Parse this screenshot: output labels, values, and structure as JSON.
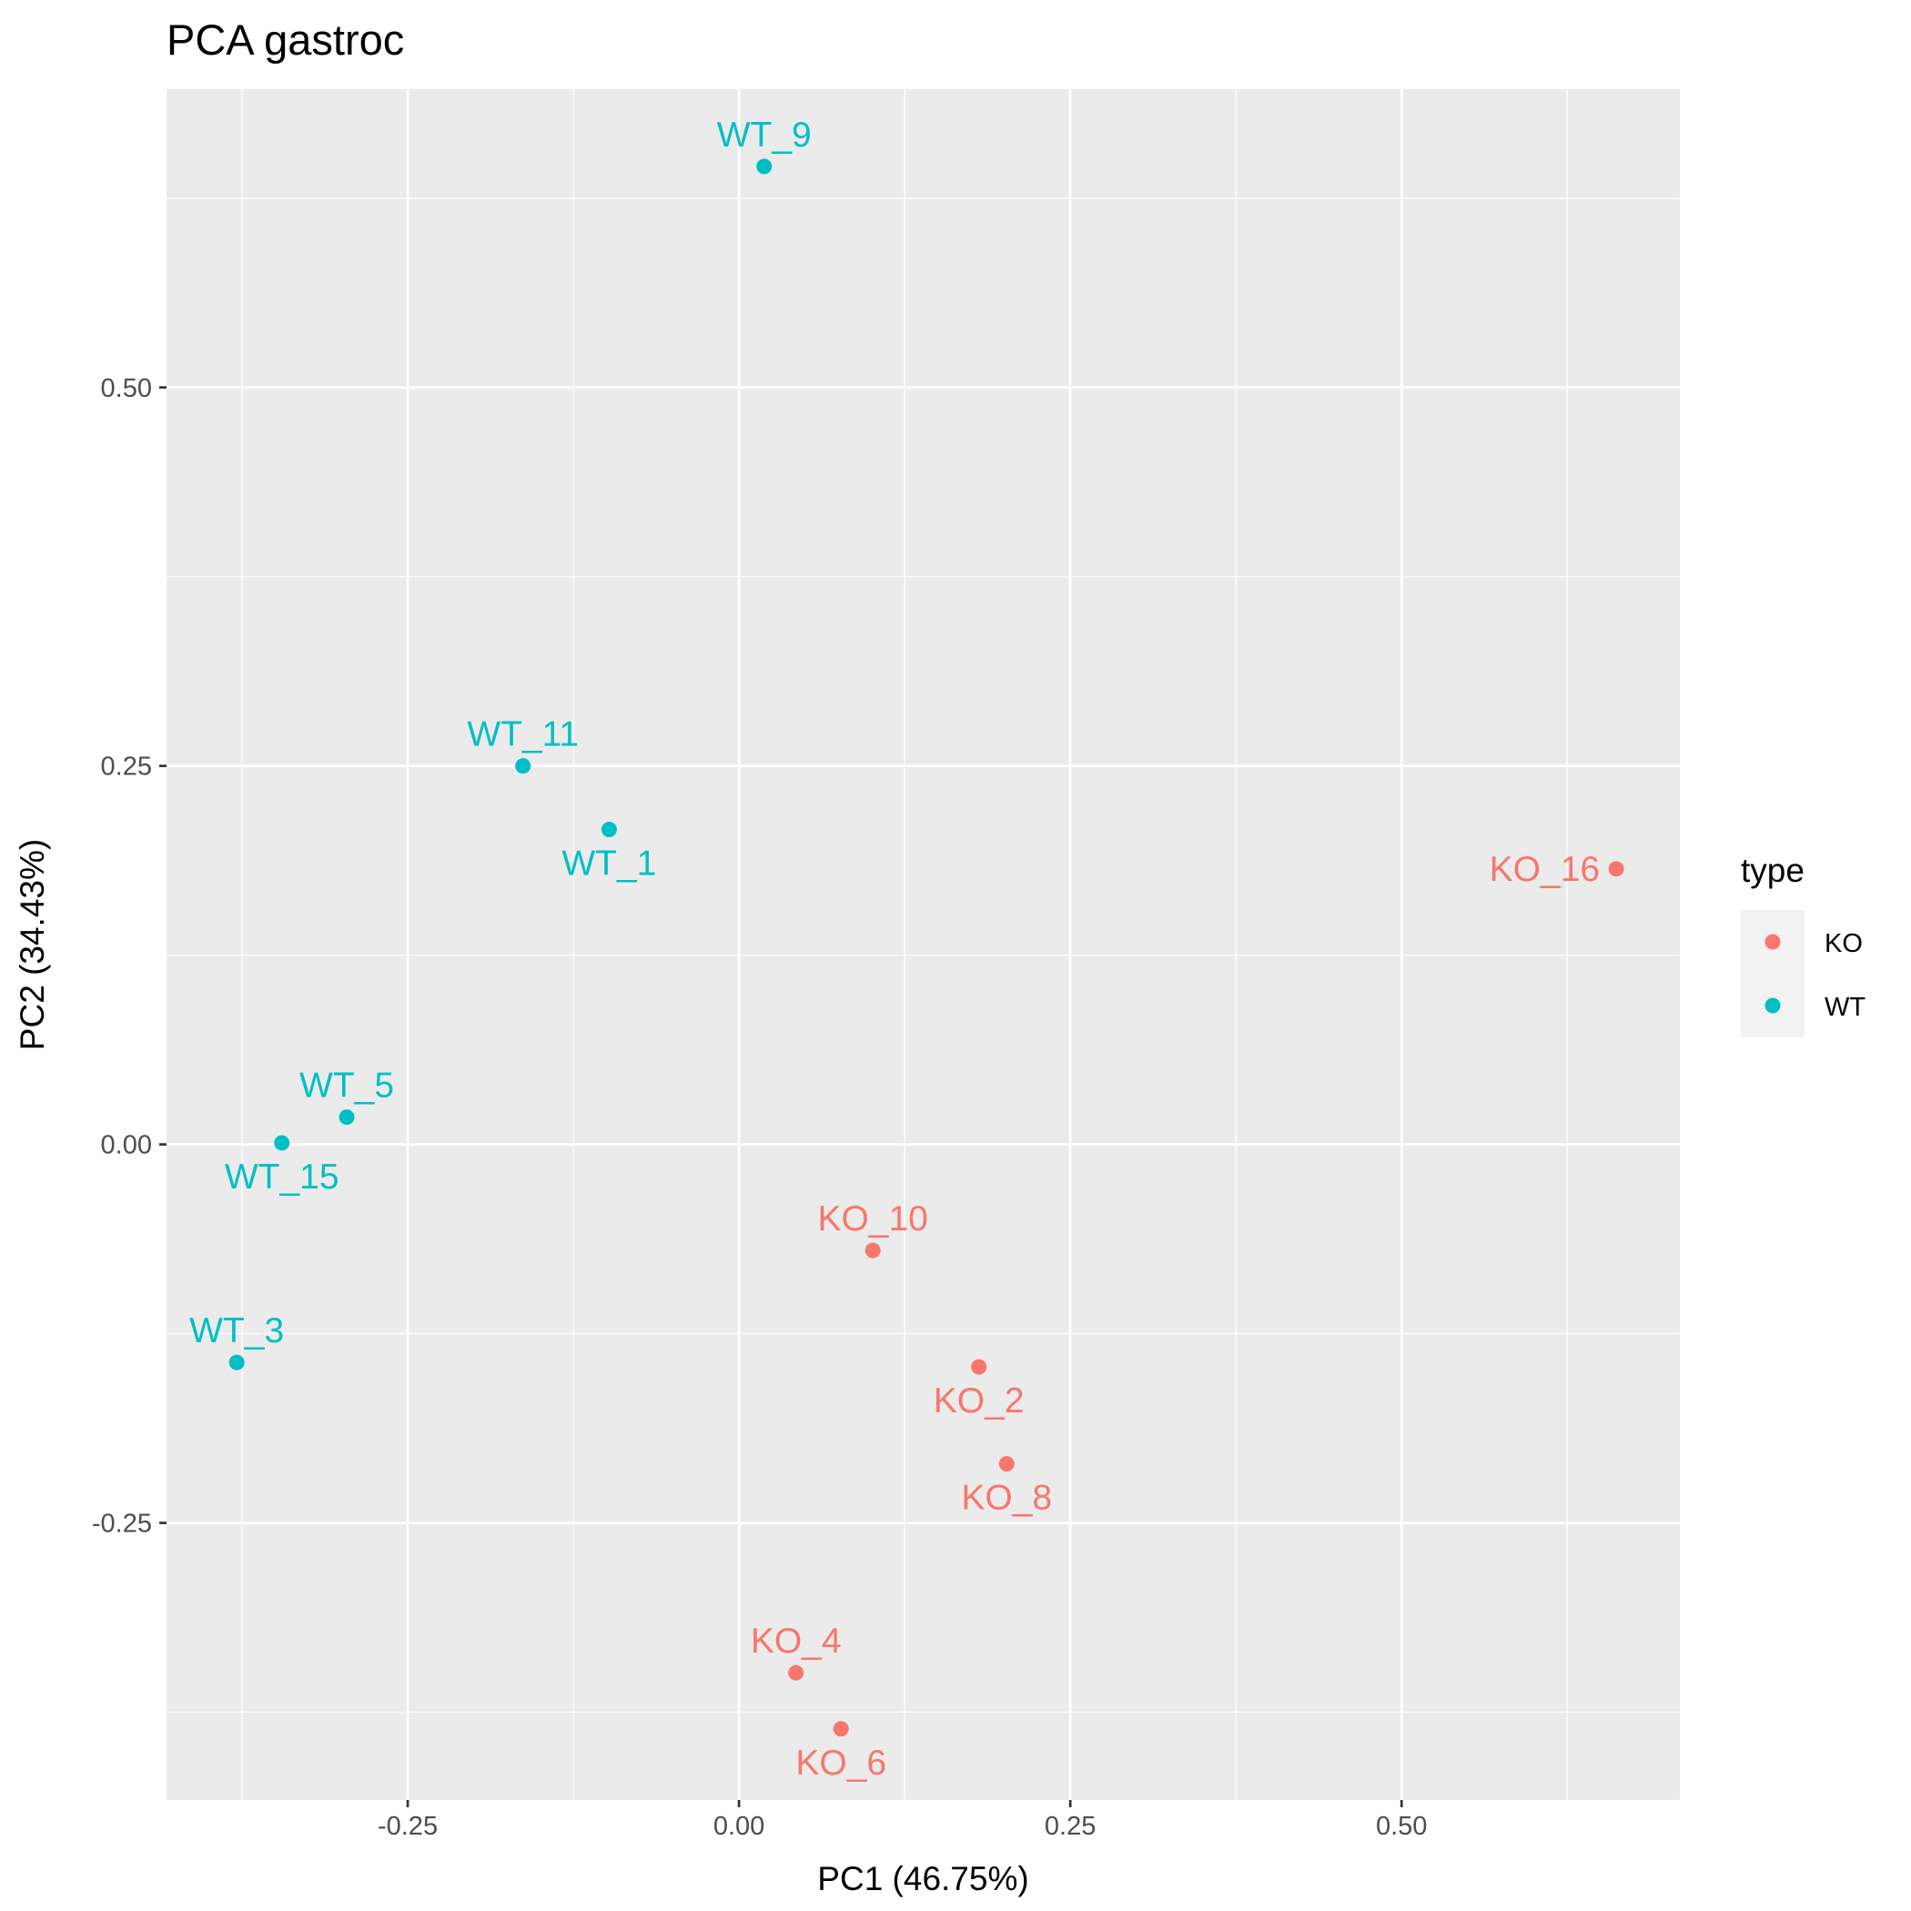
{
  "chart_data": {
    "type": "scatter",
    "title": "PCA gastroc",
    "xlabel": "PC1 (46.75%)",
    "ylabel": "PC2 (34.43%)",
    "xlim": [
      -0.432,
      0.71
    ],
    "ylim": [
      -0.433,
      0.697
    ],
    "x_ticks": [
      {
        "value": -0.25,
        "label": "-0.25"
      },
      {
        "value": 0.0,
        "label": "0.00"
      },
      {
        "value": 0.25,
        "label": "0.25"
      },
      {
        "value": 0.5,
        "label": "0.50"
      }
    ],
    "y_ticks": [
      {
        "value": -0.25,
        "label": "-0.25"
      },
      {
        "value": 0.0,
        "label": "0.00"
      },
      {
        "value": 0.25,
        "label": "0.25"
      },
      {
        "value": 0.5,
        "label": "0.50"
      }
    ],
    "grid": true,
    "legend": {
      "title": "type",
      "position": "right",
      "entries": [
        {
          "name": "KO",
          "color": "#F8766D"
        },
        {
          "name": "WT",
          "color": "#00BFC4"
        }
      ]
    },
    "series": [
      {
        "name": "KO",
        "color": "#F8766D",
        "points": [
          {
            "label": "KO_16",
            "x": 0.662,
            "y": 0.182,
            "label_pos": "left"
          },
          {
            "label": "KO_10",
            "x": 0.101,
            "y": -0.07,
            "label_pos": "above"
          },
          {
            "label": "KO_2",
            "x": 0.181,
            "y": -0.147,
            "label_pos": "below"
          },
          {
            "label": "KO_8",
            "x": 0.202,
            "y": -0.211,
            "label_pos": "below"
          },
          {
            "label": "KO_4",
            "x": 0.043,
            "y": -0.349,
            "label_pos": "above"
          },
          {
            "label": "KO_6",
            "x": 0.077,
            "y": -0.386,
            "label_pos": "below"
          }
        ]
      },
      {
        "name": "WT",
        "color": "#00BFC4",
        "points": [
          {
            "label": "WT_9",
            "x": 0.019,
            "y": 0.646,
            "label_pos": "above"
          },
          {
            "label": "WT_11",
            "x": -0.163,
            "y": 0.25,
            "label_pos": "above"
          },
          {
            "label": "WT_1",
            "x": -0.098,
            "y": 0.208,
            "label_pos": "below"
          },
          {
            "label": "WT_5",
            "x": -0.296,
            "y": 0.018,
            "label_pos": "above"
          },
          {
            "label": "WT_15",
            "x": -0.345,
            "y": 0.001,
            "label_pos": "below"
          },
          {
            "label": "WT_3",
            "x": -0.379,
            "y": -0.144,
            "label_pos": "above"
          }
        ]
      }
    ]
  }
}
